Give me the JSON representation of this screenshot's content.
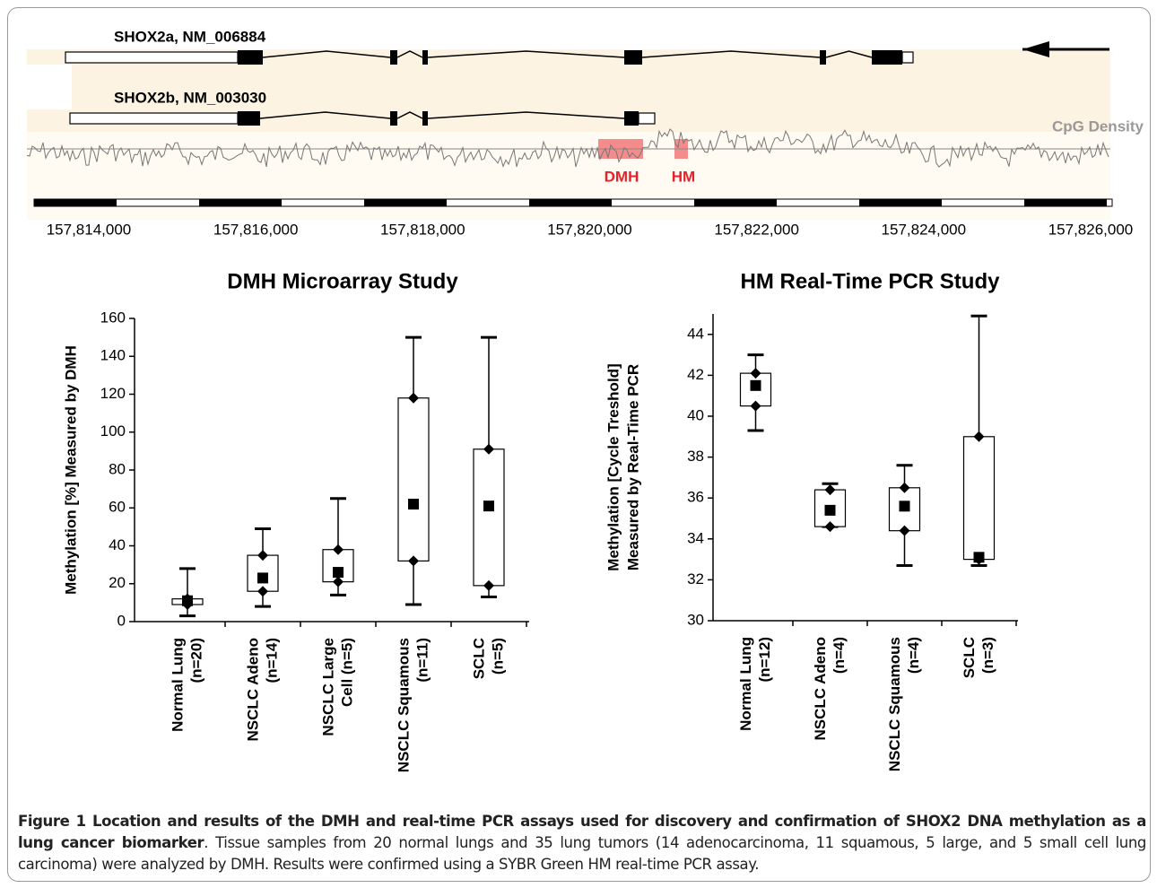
{
  "genome_track": {
    "transcripts": [
      {
        "label": "SHOX2a, NM_006884"
      },
      {
        "label": "SHOX2b, NM_003030"
      }
    ],
    "cpg_label": "CpG Density",
    "regions": [
      {
        "label": "DMH"
      },
      {
        "label": "HM"
      }
    ],
    "coordinate_ticks": [
      {
        "value": 157814000,
        "label": "157,814,000"
      },
      {
        "value": 157816000,
        "label": "157,816,000"
      },
      {
        "value": 157818000,
        "label": "157,818,000"
      },
      {
        "value": 157820000,
        "label": "157,820,000"
      },
      {
        "value": 157822000,
        "label": "157,822,000"
      },
      {
        "value": 157824000,
        "label": "157,824,000"
      },
      {
        "value": 157826000,
        "label": "157,826,000"
      }
    ]
  },
  "chart_data": [
    {
      "type": "box",
      "title": "DMH Microarray Study",
      "y_label": [
        "Methylation [%] Measured by DMH"
      ],
      "categories": [
        [
          "Normal Lung",
          "(n=20)"
        ],
        [
          "NSCLC Adeno",
          "(n=14)"
        ],
        [
          "NSCLC Large",
          "Cell (n=5)"
        ],
        [
          "NSCLC Squamous",
          "(n=11)"
        ],
        [
          "SCLC",
          "(n=5)"
        ]
      ],
      "min": [
        3,
        8,
        14,
        9,
        13
      ],
      "q1": [
        9,
        16,
        21,
        32,
        19
      ],
      "median": [
        11,
        23,
        26,
        62,
        61
      ],
      "q3": [
        12,
        35,
        38,
        118,
        91
      ],
      "max": [
        28,
        49,
        65,
        150,
        150
      ],
      "ylim": [
        0,
        160
      ],
      "yticks": [
        0,
        20,
        40,
        60,
        80,
        100,
        120,
        140,
        160
      ],
      "color": "#000000"
    },
    {
      "type": "box",
      "title": "HM Real-Time PCR Study",
      "y_label": [
        "Methylation [Cycle Treshold]",
        "Measured by Real-Time PCR"
      ],
      "categories": [
        [
          "Normal Lung",
          "(n=12)"
        ],
        [
          "NSCLC Adeno",
          "(n=4)"
        ],
        [
          "NSCLC Squamous",
          "(n=4)"
        ],
        [
          "SCLC",
          "(n=3)"
        ]
      ],
      "min": [
        39.3,
        34.6,
        32.7,
        32.7
      ],
      "q1": [
        40.5,
        34.6,
        34.4,
        33
      ],
      "median": [
        41.5,
        35.4,
        35.6,
        33.1
      ],
      "q3": [
        42.1,
        36.4,
        36.5,
        39
      ],
      "max": [
        43,
        36.7,
        37.6,
        44.9
      ],
      "ylim": [
        30,
        45
      ],
      "yticks": [
        30,
        32,
        34,
        36,
        38,
        40,
        42,
        44
      ],
      "color": "#000000"
    }
  ],
  "caption": {
    "bold": "Figure 1 Location and results of the DMH and real-time PCR assays used for discovery and confirmation of SHOX2 DNA methylation as a lung cancer biomarker",
    "text": ". Tissue samples from 20 normal lungs and 35 lung tumors (14 adenocarcinoma, 11 squamous, 5 large, and 5 small cell lung carcinoma) were analyzed by DMH. Results were confirmed using a SYBR Green HM real-time PCR assay."
  }
}
